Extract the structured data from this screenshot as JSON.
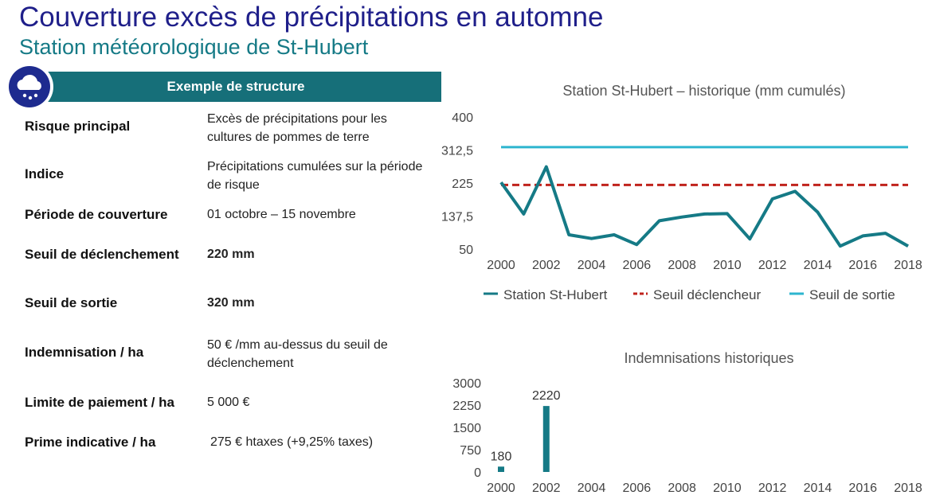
{
  "header": {
    "title": "Couverture excès de précipitations en automne",
    "subtitle": "Station météorologique de St-Hubert"
  },
  "structure": {
    "banner_label": "Exemple de structure",
    "icon": "rain-cloud-icon",
    "rows": [
      {
        "label": "Risque principal",
        "value": "Excès de précipitations pour les cultures de pommes de terre"
      },
      {
        "label": "Indice",
        "value": "Précipitations cumulées sur la période de risque"
      },
      {
        "label": "Période de couverture",
        "value": "01 octobre – 15 novembre"
      },
      {
        "label": "Seuil de déclenchement",
        "value": "220 mm"
      },
      {
        "label": "Seuil de sortie",
        "value": "320 mm"
      },
      {
        "label": "Indemnisation / ha",
        "value": "50 € /mm au-dessus du seuil de déclenchement"
      },
      {
        "label": "Limite de paiement / ha",
        "value": "5 000 €"
      },
      {
        "label": "Prime indicative / ha",
        "value": "275 € htaxes (+9,25% taxes)"
      }
    ]
  },
  "colors": {
    "title": "#1f1f8a",
    "subtitle": "#157a86",
    "banner": "#166f79",
    "icon_bg": "#1e2b8f",
    "series_station": "#157a86",
    "series_trigger": "#c0231c",
    "series_exit": "#2db5cf",
    "bars": "#157a86"
  },
  "chart_data": [
    {
      "type": "line",
      "title": "Station St-Hubert – historique (mm cumulés)",
      "x": [
        2000,
        2001,
        2002,
        2003,
        2004,
        2005,
        2006,
        2007,
        2008,
        2009,
        2010,
        2011,
        2012,
        2013,
        2014,
        2015,
        2016,
        2017,
        2018
      ],
      "xticks": [
        "2000",
        "2002",
        "2004",
        "2006",
        "2008",
        "2010",
        "2012",
        "2014",
        "2016",
        "2018"
      ],
      "yticks": [
        "50",
        "137,5",
        "225",
        "312,5",
        "400"
      ],
      "ylim": [
        50,
        400
      ],
      "legend_position": "bottom",
      "series": [
        {
          "name": "Station St-Hubert",
          "style": "solid",
          "values": [
            227,
            143,
            268,
            88,
            78,
            88,
            62,
            125,
            135,
            143,
            144,
            77,
            183,
            203,
            148,
            58,
            85,
            92,
            58
          ]
        },
        {
          "name": "Seuil déclencheur",
          "style": "dashed",
          "values": [
            220,
            220,
            220,
            220,
            220,
            220,
            220,
            220,
            220,
            220,
            220,
            220,
            220,
            220,
            220,
            220,
            220,
            220,
            220
          ]
        },
        {
          "name": "Seuil de sortie",
          "style": "solid",
          "values": [
            320,
            320,
            320,
            320,
            320,
            320,
            320,
            320,
            320,
            320,
            320,
            320,
            320,
            320,
            320,
            320,
            320,
            320,
            320
          ]
        }
      ]
    },
    {
      "type": "bar",
      "title": "Indemnisations historiques",
      "x": [
        2000,
        2001,
        2002,
        2003,
        2004,
        2005,
        2006,
        2007,
        2008,
        2009,
        2010,
        2011,
        2012,
        2013,
        2014,
        2015,
        2016,
        2017,
        2018
      ],
      "values": [
        180,
        0,
        2220,
        0,
        0,
        0,
        0,
        0,
        0,
        0,
        0,
        0,
        0,
        0,
        0,
        0,
        0,
        0,
        0
      ],
      "data_labels": [
        {
          "year": 2000,
          "label": "180"
        },
        {
          "year": 2002,
          "label": "2220"
        }
      ],
      "xticks": [
        "2000",
        "2002",
        "2004",
        "2006",
        "2008",
        "2010",
        "2012",
        "2014",
        "2016",
        "2018"
      ],
      "yticks": [
        "0",
        "750",
        "1500",
        "2250",
        "3000"
      ],
      "ylim": [
        0,
        3000
      ]
    }
  ]
}
